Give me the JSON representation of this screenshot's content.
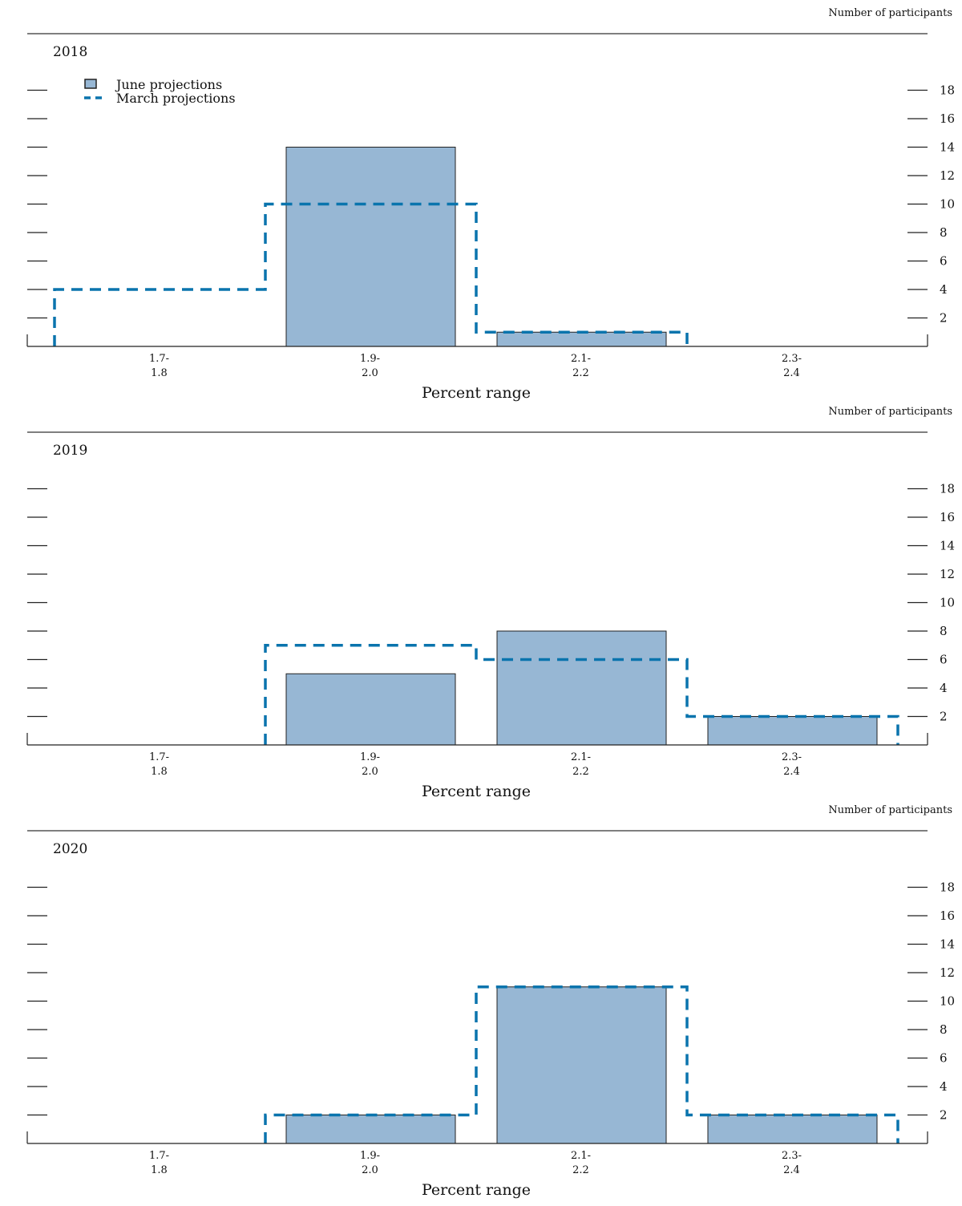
{
  "chart_data": [
    {
      "type": "bar",
      "title": "2018",
      "categories": [
        [
          "1.7-",
          "1.8"
        ],
        [
          "1.9-",
          "2.0"
        ],
        [
          "2.1-",
          "2.2"
        ],
        [
          "2.3-",
          "2.4"
        ]
      ],
      "series": [
        {
          "name": "June projections",
          "style": "bar",
          "values": [
            0,
            14,
            1,
            0
          ]
        },
        {
          "name": "March projections",
          "style": "dashed-step",
          "values": [
            4,
            10,
            1,
            0
          ]
        }
      ],
      "xlabel": "Percent range",
      "ylabel": "Number of participants",
      "ylim": [
        0,
        18
      ],
      "yticks": [
        2,
        4,
        6,
        8,
        10,
        12,
        14,
        16,
        18
      ],
      "legend": "top-left"
    },
    {
      "type": "bar",
      "title": "2019",
      "categories": [
        [
          "1.7-",
          "1.8"
        ],
        [
          "1.9-",
          "2.0"
        ],
        [
          "2.1-",
          "2.2"
        ],
        [
          "2.3-",
          "2.4"
        ]
      ],
      "series": [
        {
          "name": "June projections",
          "style": "bar",
          "values": [
            0,
            5,
            8,
            2
          ]
        },
        {
          "name": "March projections",
          "style": "dashed-step",
          "values": [
            0,
            7,
            6,
            2
          ]
        }
      ],
      "xlabel": "Percent range",
      "ylabel": "Number of participants",
      "ylim": [
        0,
        18
      ],
      "yticks": [
        2,
        4,
        6,
        8,
        10,
        12,
        14,
        16,
        18
      ]
    },
    {
      "type": "bar",
      "title": "2020",
      "categories": [
        [
          "1.7-",
          "1.8"
        ],
        [
          "1.9-",
          "2.0"
        ],
        [
          "2.1-",
          "2.2"
        ],
        [
          "2.3-",
          "2.4"
        ]
      ],
      "series": [
        {
          "name": "June projections",
          "style": "bar",
          "values": [
            0,
            2,
            11,
            2
          ]
        },
        {
          "name": "March projections",
          "style": "dashed-step",
          "values": [
            0,
            2,
            11,
            2
          ]
        }
      ],
      "xlabel": "Percent range",
      "ylabel": "Number of participants",
      "ylim": [
        0,
        18
      ],
      "yticks": [
        2,
        4,
        6,
        8,
        10,
        12,
        14,
        16,
        18
      ]
    }
  ],
  "colors": {
    "bar_fill": "#97b7d4",
    "bar_stroke": "#222222",
    "march": "#0a74ad"
  }
}
